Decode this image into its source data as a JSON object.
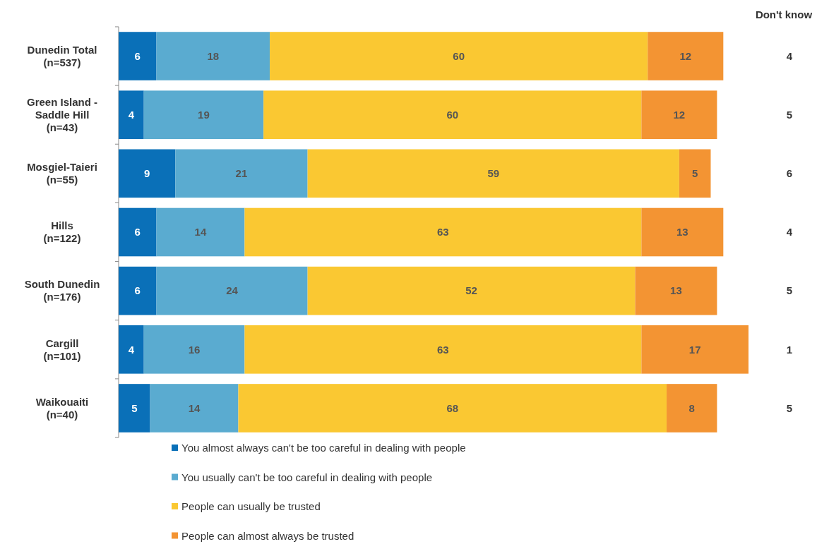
{
  "chart_data": {
    "type": "bar",
    "orientation": "horizontal",
    "stacked": true,
    "data_labels": true,
    "legend": "bottom",
    "tick_labels": "y",
    "xlim": [
      0,
      100
    ],
    "categories": [
      "Dunedin Total\n(n=537)",
      "Green Island -\nSaddle Hill\n(n=43)",
      "Mosgiel-Taieri\n(n=55)",
      "Hills\n(n=122)",
      "South Dunedin\n(n=176)",
      "Cargill\n(n=101)",
      "Waikouaiti\n(n=40)"
    ],
    "series": [
      {
        "name": "You almost always can't be too careful in dealing with people",
        "color": "#0a70b8",
        "values": [
          6,
          4,
          9,
          6,
          6,
          4,
          5
        ]
      },
      {
        "name": "You usually can't be too careful in dealing with people",
        "color": "#5aabd0",
        "values": [
          18,
          19,
          21,
          14,
          24,
          16,
          14
        ]
      },
      {
        "name": "People can usually be trusted",
        "color": "#fac832",
        "values": [
          60,
          60,
          59,
          63,
          52,
          63,
          68
        ]
      },
      {
        "name": "People can almost always be trusted",
        "color": "#f39433",
        "values": [
          12,
          12,
          5,
          13,
          13,
          17,
          8
        ]
      }
    ],
    "annotations": [
      "Don't know",
      "4",
      "5",
      "6",
      "4",
      "5",
      "1",
      "5"
    ]
  }
}
